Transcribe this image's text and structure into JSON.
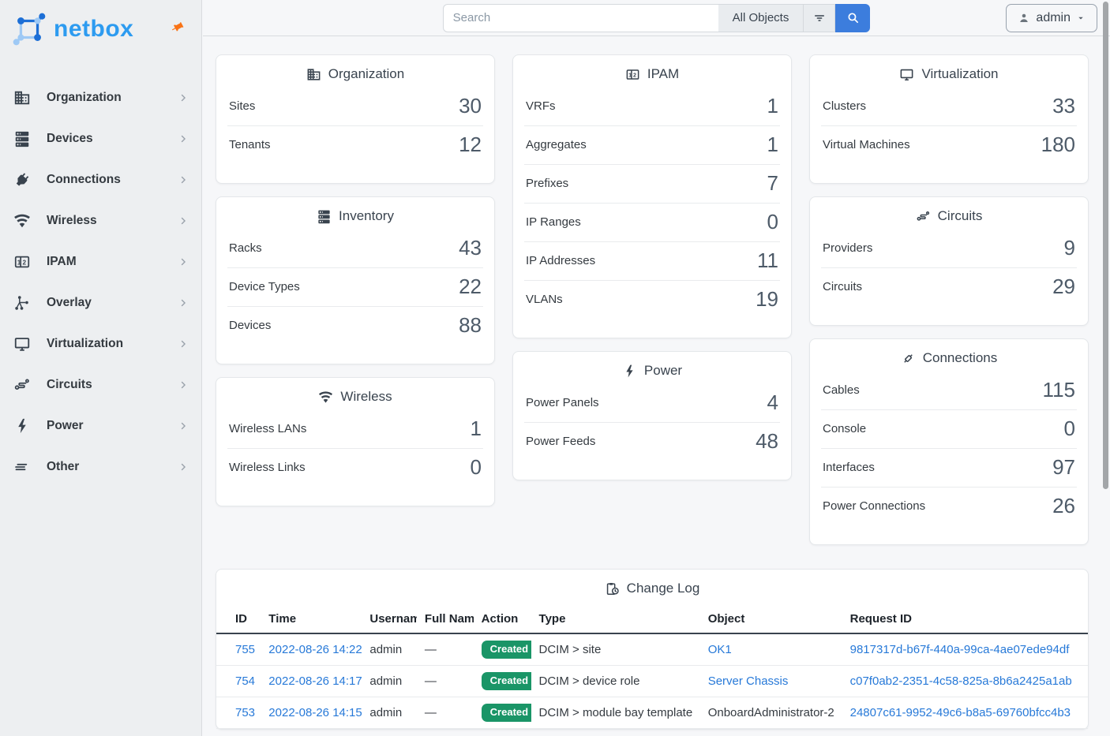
{
  "colors": {
    "brand_blue": "#2d9bf0",
    "logo_dark_blue": "#1d6fd6",
    "logo_light_blue": "#9ec9f5",
    "accent_blue": "#3c7ddd",
    "link_blue": "#2779d8",
    "badge_green": "#1a9567",
    "pin_orange": "#f97316"
  },
  "sidebar": {
    "brand": "netbox",
    "items": [
      {
        "label": "Organization",
        "icon": "building-icon"
      },
      {
        "label": "Devices",
        "icon": "server-icon"
      },
      {
        "label": "Connections",
        "icon": "plug-icon"
      },
      {
        "label": "Wireless",
        "icon": "wifi-icon"
      },
      {
        "label": "IPAM",
        "icon": "counter-icon"
      },
      {
        "label": "Overlay",
        "icon": "graph-icon"
      },
      {
        "label": "Virtualization",
        "icon": "monitor-icon"
      },
      {
        "label": "Circuits",
        "icon": "transit-icon"
      },
      {
        "label": "Power",
        "icon": "lightning-icon"
      },
      {
        "label": "Other",
        "icon": "menu-icon"
      }
    ]
  },
  "topbar": {
    "search_placeholder": "Search",
    "scope_label": "All Objects",
    "user_label": "admin"
  },
  "dashboard": {
    "cards": [
      {
        "title": "Organization",
        "icon": "building-icon",
        "column": 0,
        "stats": [
          {
            "label": "Sites",
            "value": "30"
          },
          {
            "label": "Tenants",
            "value": "12"
          }
        ]
      },
      {
        "title": "Inventory",
        "icon": "server-icon",
        "column": 0,
        "stats": [
          {
            "label": "Racks",
            "value": "43"
          },
          {
            "label": "Device Types",
            "value": "22"
          },
          {
            "label": "Devices",
            "value": "88"
          }
        ]
      },
      {
        "title": "Wireless",
        "icon": "wifi-icon",
        "column": 0,
        "stats": [
          {
            "label": "Wireless LANs",
            "value": "1"
          },
          {
            "label": "Wireless Links",
            "value": "0"
          }
        ]
      },
      {
        "title": "IPAM",
        "icon": "counter-icon",
        "column": 1,
        "stats": [
          {
            "label": "VRFs",
            "value": "1"
          },
          {
            "label": "Aggregates",
            "value": "1"
          },
          {
            "label": "Prefixes",
            "value": "7"
          },
          {
            "label": "IP Ranges",
            "value": "0"
          },
          {
            "label": "IP Addresses",
            "value": "11"
          },
          {
            "label": "VLANs",
            "value": "19"
          }
        ]
      },
      {
        "title": "Power",
        "icon": "lightning-icon",
        "column": 1,
        "stats": [
          {
            "label": "Power Panels",
            "value": "4"
          },
          {
            "label": "Power Feeds",
            "value": "48"
          }
        ]
      },
      {
        "title": "Virtualization",
        "icon": "monitor-icon",
        "column": 2,
        "stats": [
          {
            "label": "Clusters",
            "value": "33"
          },
          {
            "label": "Virtual Machines",
            "value": "180"
          }
        ]
      },
      {
        "title": "Circuits",
        "icon": "transit-icon",
        "column": 2,
        "stats": [
          {
            "label": "Providers",
            "value": "9"
          },
          {
            "label": "Circuits",
            "value": "29"
          }
        ]
      },
      {
        "title": "Connections",
        "icon": "cable-icon",
        "column": 2,
        "stats": [
          {
            "label": "Cables",
            "value": "115"
          },
          {
            "label": "Console",
            "value": "0"
          },
          {
            "label": "Interfaces",
            "value": "97"
          },
          {
            "label": "Power Connections",
            "value": "26"
          }
        ]
      }
    ]
  },
  "changelog": {
    "title": "Change Log",
    "icon": "clipboard-clock-icon",
    "columns": [
      "ID",
      "Time",
      "Username",
      "Full Name",
      "Action",
      "Type",
      "Object",
      "Request ID"
    ],
    "rows": [
      {
        "id": "755",
        "time": "2022-08-26 14:22",
        "username": "admin",
        "full_name": "—",
        "action": "Created",
        "type": "DCIM > site",
        "object": "OK1",
        "object_is_link": true,
        "request_id": "9817317d-b67f-440a-99ca-4ae07ede94df"
      },
      {
        "id": "754",
        "time": "2022-08-26 14:17",
        "username": "admin",
        "full_name": "—",
        "action": "Created",
        "type": "DCIM > device role",
        "object": "Server Chassis",
        "object_is_link": true,
        "request_id": "c07f0ab2-2351-4c58-825a-8b6a2425a1ab"
      },
      {
        "id": "753",
        "time": "2022-08-26 14:15",
        "username": "admin",
        "full_name": "—",
        "action": "Created",
        "type": "DCIM > module bay template",
        "object": "OnboardAdministrator-2",
        "object_is_link": false,
        "request_id": "24807c61-9952-49c6-b8a5-69760bfcc4b3"
      }
    ]
  }
}
